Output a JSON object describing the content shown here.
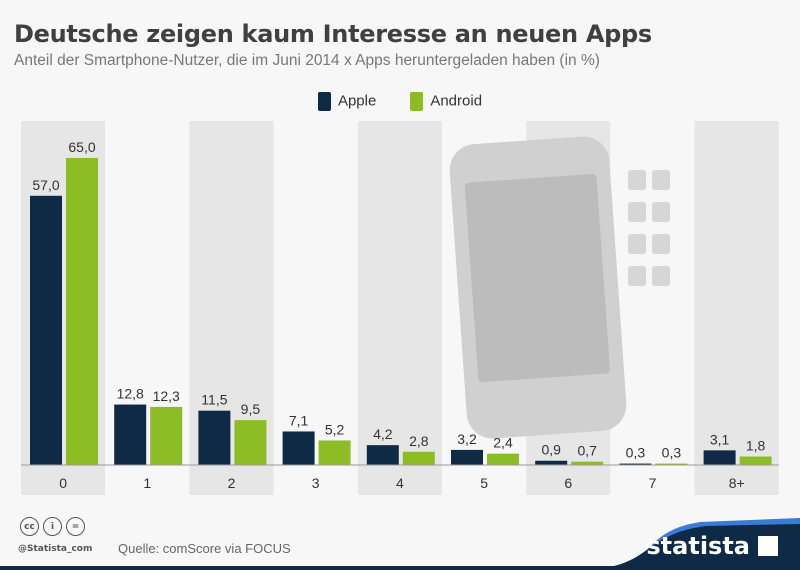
{
  "chart_data": {
    "type": "bar",
    "title": "Deutsche zeigen kaum Interesse an neuen Apps",
    "subtitle": "Anteil der Smartphone-Nutzer, die im Juni 2014 x Apps heruntergeladen haben (in %)",
    "categories": [
      "0",
      "1",
      "2",
      "3",
      "4",
      "5",
      "6",
      "7",
      "8+"
    ],
    "series": [
      {
        "name": "Apple",
        "color": "#0e2a47",
        "values": [
          57.0,
          12.8,
          11.5,
          7.1,
          4.2,
          3.2,
          0.9,
          0.3,
          3.1
        ],
        "labels": [
          "57,0",
          "12,8",
          "11,5",
          "7,1",
          "4,2",
          "3,2",
          "0,9",
          "0,3",
          "3,1"
        ]
      },
      {
        "name": "Android",
        "color": "#8cbd24",
        "values": [
          65.0,
          12.3,
          9.5,
          5.2,
          2.8,
          2.4,
          0.7,
          0.3,
          1.8
        ],
        "labels": [
          "65,0",
          "12,3",
          "9,5",
          "5,2",
          "2,8",
          "2,4",
          "0,7",
          "0,3",
          "1,8"
        ]
      }
    ],
    "xlabel": "",
    "ylabel": "",
    "ylim": [
      0,
      73
    ],
    "legend": "top-center",
    "grid": false
  },
  "footer": {
    "handle": "@Statista_com",
    "source": "Quelle: comScore via FOCUS",
    "brand": "statista",
    "cc_icons": [
      "cc",
      "by",
      "nd"
    ]
  }
}
